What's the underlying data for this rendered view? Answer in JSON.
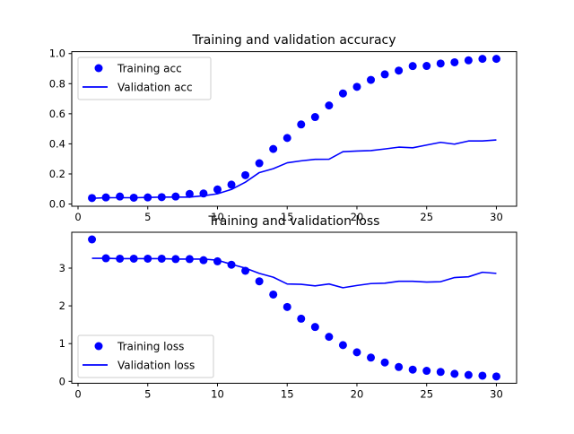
{
  "chart_data": [
    {
      "type": "line",
      "title": "Training and validation accuracy",
      "xlabel": "",
      "ylabel": "",
      "xlim": [
        -0.45,
        31.45
      ],
      "ylim": [
        -0.0147,
        1.0128
      ],
      "xticks": [
        0,
        5,
        10,
        15,
        20,
        25,
        30
      ],
      "yticks": [
        0.0,
        0.2,
        0.4,
        0.6,
        0.8,
        1.0
      ],
      "xtick_labels": [
        "0",
        "5",
        "10",
        "15",
        "20",
        "25",
        "30"
      ],
      "ytick_labels": [
        "0.0",
        "0.2",
        "0.4",
        "0.6",
        "0.8",
        "1.0"
      ],
      "legend_position": "upper-left",
      "grid": false,
      "x": [
        1,
        2,
        3,
        4,
        5,
        6,
        7,
        8,
        9,
        10,
        11,
        12,
        13,
        14,
        15,
        16,
        17,
        18,
        19,
        20,
        21,
        22,
        23,
        24,
        25,
        26,
        27,
        28,
        29,
        30
      ],
      "series": [
        {
          "name": "Training acc",
          "style": "markers",
          "color": "#0000ff",
          "values": [
            0.04,
            0.044,
            0.05,
            0.042,
            0.044,
            0.046,
            0.05,
            0.067,
            0.07,
            0.097,
            0.129,
            0.192,
            0.271,
            0.366,
            0.439,
            0.529,
            0.578,
            0.655,
            0.735,
            0.779,
            0.825,
            0.862,
            0.887,
            0.917,
            0.918,
            0.934,
            0.942,
            0.955,
            0.965,
            0.965
          ]
        },
        {
          "name": "Validation acc",
          "style": "line",
          "color": "#0000ff",
          "values": [
            0.038,
            0.042,
            0.042,
            0.042,
            0.044,
            0.046,
            0.046,
            0.046,
            0.055,
            0.068,
            0.097,
            0.145,
            0.209,
            0.235,
            0.274,
            0.287,
            0.297,
            0.298,
            0.348,
            0.352,
            0.355,
            0.366,
            0.378,
            0.374,
            0.392,
            0.41,
            0.398,
            0.419,
            0.419,
            0.426
          ]
        }
      ]
    },
    {
      "type": "line",
      "title": "Training and validation loss",
      "xlabel": "",
      "ylabel": "",
      "xlim": [
        -0.45,
        31.45
      ],
      "ylim": [
        -0.05,
        3.95
      ],
      "xticks": [
        0,
        5,
        10,
        15,
        20,
        25,
        30
      ],
      "yticks": [
        0,
        1,
        2,
        3
      ],
      "xtick_labels": [
        "0",
        "5",
        "10",
        "15",
        "20",
        "25",
        "30"
      ],
      "ytick_labels": [
        "0",
        "1",
        "2",
        "3"
      ],
      "legend_position": "lower-left",
      "grid": false,
      "x": [
        1,
        2,
        3,
        4,
        5,
        6,
        7,
        8,
        9,
        10,
        11,
        12,
        13,
        14,
        15,
        16,
        17,
        18,
        19,
        20,
        21,
        22,
        23,
        24,
        25,
        26,
        27,
        28,
        29,
        30
      ],
      "series": [
        {
          "name": "Training loss",
          "style": "markers",
          "color": "#0000ff",
          "values": [
            3.76,
            3.26,
            3.25,
            3.25,
            3.25,
            3.25,
            3.24,
            3.24,
            3.21,
            3.18,
            3.09,
            2.93,
            2.65,
            2.3,
            1.97,
            1.66,
            1.44,
            1.18,
            0.96,
            0.77,
            0.63,
            0.5,
            0.38,
            0.31,
            0.28,
            0.25,
            0.2,
            0.17,
            0.15,
            0.13
          ]
        },
        {
          "name": "Validation loss",
          "style": "line",
          "color": "#0000ff",
          "values": [
            3.26,
            3.26,
            3.25,
            3.25,
            3.25,
            3.25,
            3.24,
            3.24,
            3.24,
            3.21,
            3.1,
            3.0,
            2.86,
            2.76,
            2.58,
            2.57,
            2.53,
            2.58,
            2.48,
            2.54,
            2.59,
            2.6,
            2.65,
            2.65,
            2.63,
            2.64,
            2.75,
            2.77,
            2.89,
            2.86
          ]
        }
      ]
    }
  ]
}
